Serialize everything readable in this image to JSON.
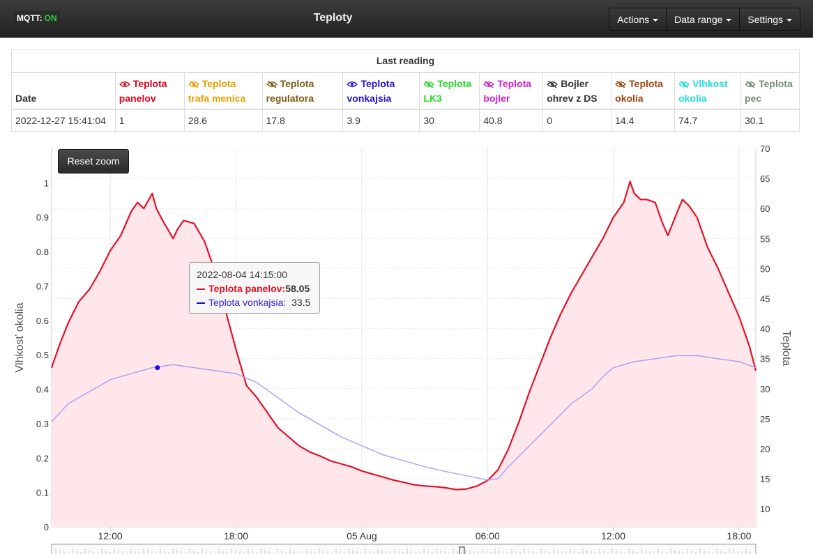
{
  "navbar": {
    "mqtt_label": "MQTT:",
    "mqtt_status": "ON",
    "title": "Teploty",
    "menu": [
      {
        "label": "Actions"
      },
      {
        "label": "Data range"
      },
      {
        "label": "Settings"
      }
    ]
  },
  "reading": {
    "caption": "Last reading",
    "date_header": "Date",
    "columns": [
      {
        "line1": "Teplota",
        "line2": "panelov",
        "color": "#e0001b",
        "visible": true
      },
      {
        "line1": "Teplota",
        "line2": "trafa menica",
        "color": "#e8a000",
        "visible": false
      },
      {
        "line1": "Teplota",
        "line2": "regulatora",
        "color": "#7a5a12",
        "visible": false
      },
      {
        "line1": "Teplota",
        "line2": "vonkajsia",
        "color": "#2211cc",
        "visible": true
      },
      {
        "line1": "Teplota",
        "line2": "LK3",
        "color": "#22dd22",
        "visible": false
      },
      {
        "line1": "Teplota",
        "line2": "bojler",
        "color": "#cc22cc",
        "visible": false
      },
      {
        "line1": "Bojler",
        "line2": "ohrev z DS",
        "color": "#333333",
        "visible": false
      },
      {
        "line1": "Teplota",
        "line2": "okolia",
        "color": "#a0430f",
        "visible": false
      },
      {
        "line1": "Vlhkost",
        "line2": "okolia",
        "color": "#22dddd",
        "visible": false
      },
      {
        "line1": "Teplota",
        "line2": "pec",
        "color": "#6f8f6f",
        "visible": false
      }
    ],
    "date": "2022-12-27 15:41:04",
    "values": [
      "1",
      "28.6",
      "17.8",
      "3.9",
      "30",
      "40.8",
      "0",
      "14.4",
      "74.7",
      "30.1"
    ]
  },
  "chart": {
    "reset_label": "Reset zoom",
    "tooltip": {
      "date": "2022-08-04 14:15:00",
      "series1_name": "Teplota panelov:",
      "series1_value": "58.05",
      "series2_name": "Teplota vonkajsia:",
      "series2_value": "33.5"
    }
  },
  "chart_data": {
    "type": "area",
    "ylabel_left": "Vlhkosť okolia",
    "ylabel_right": "Teplota",
    "yleft_ticks": [
      "0",
      "0.1",
      "0.2",
      "0.3",
      "0.4",
      "0.5",
      "0.6",
      "0.7",
      "0.8",
      "0.9",
      "1"
    ],
    "yright_ticks": [
      "10",
      "15",
      "20",
      "25",
      "30",
      "35",
      "40",
      "45",
      "50",
      "55",
      "60",
      "65",
      "70"
    ],
    "yleft_range": [
      0,
      1.1
    ],
    "yright_range": [
      7,
      70
    ],
    "x_ticks": [
      "12:00",
      "18:00",
      "05 Aug",
      "06:00",
      "12:00",
      "18:00"
    ],
    "x_tick_hours": [
      12,
      18,
      24,
      30,
      36,
      42
    ],
    "x_range_hours": [
      9.2,
      42.8
    ],
    "x_hour_unit": "hours from 2022-08-04 00:00",
    "series": [
      {
        "name": "Teplota panelov",
        "color": "#e0122a",
        "fill": "#ffe6ea",
        "axis": "right",
        "x": [
          9.2,
          9.6,
          10.0,
          10.5,
          11.0,
          11.5,
          12.0,
          12.5,
          13.0,
          13.3,
          13.6,
          14.0,
          14.2,
          14.5,
          15.0,
          15.2,
          15.5,
          16.0,
          16.5,
          17.0,
          17.5,
          18.0,
          18.5,
          19.0,
          19.5,
          20.0,
          20.5,
          21.0,
          21.5,
          22.0,
          22.5,
          23.0,
          23.5,
          24.0,
          24.5,
          25.0,
          25.5,
          26.0,
          26.5,
          27.0,
          27.5,
          28.0,
          28.5,
          29.0,
          29.5,
          30.0,
          30.5,
          31.0,
          31.5,
          32.0,
          32.5,
          33.0,
          33.5,
          34.0,
          34.5,
          35.0,
          35.5,
          36.0,
          36.5,
          36.8,
          37.0,
          37.3,
          37.6,
          38.0,
          38.3,
          38.6,
          39.0,
          39.3,
          39.6,
          40.0,
          40.5,
          41.0,
          41.5,
          42.0,
          42.5,
          42.8
        ],
        "y": [
          33.5,
          37.5,
          41.0,
          44.5,
          46.5,
          49.5,
          53.0,
          55.5,
          59.5,
          61.0,
          60.0,
          62.5,
          60.0,
          58.0,
          55.0,
          56.5,
          58.0,
          57.5,
          54.5,
          49.5,
          43.0,
          36.5,
          30.5,
          28.5,
          26.0,
          23.5,
          22.0,
          20.5,
          19.5,
          18.8,
          18.0,
          17.5,
          17.0,
          16.3,
          15.8,
          15.3,
          14.8,
          14.4,
          14.0,
          13.8,
          13.7,
          13.5,
          13.2,
          13.3,
          13.8,
          14.7,
          16.5,
          20.0,
          24.5,
          29.5,
          34.0,
          38.5,
          42.5,
          46.0,
          49.0,
          52.0,
          55.0,
          58.5,
          61.0,
          64.5,
          62.5,
          61.5,
          61.5,
          61.0,
          58.0,
          55.5,
          59.0,
          61.5,
          60.5,
          58.5,
          53.5,
          50.0,
          46.0,
          42.0,
          37.0,
          33.0
        ]
      },
      {
        "name": "Teplota vonkajsia",
        "color": "#aaa3f0",
        "axis": "right",
        "x": [
          9.2,
          10.0,
          11.0,
          12.0,
          13.0,
          14.0,
          15.0,
          16.0,
          17.0,
          18.0,
          19.0,
          20.0,
          21.0,
          22.0,
          23.0,
          24.0,
          25.0,
          26.0,
          27.0,
          28.0,
          29.0,
          30.0,
          30.5,
          31.0,
          32.0,
          33.0,
          34.0,
          35.0,
          35.5,
          36.0,
          37.0,
          38.0,
          39.0,
          40.0,
          41.0,
          42.0,
          42.8
        ],
        "y": [
          24.5,
          27.5,
          29.5,
          31.5,
          32.5,
          33.5,
          34.0,
          33.5,
          33.0,
          32.5,
          31.0,
          28.5,
          26.0,
          24.0,
          22.0,
          20.5,
          19.0,
          18.0,
          17.0,
          16.2,
          15.5,
          14.8,
          15.0,
          17.0,
          20.5,
          24.0,
          27.5,
          30.0,
          32.0,
          33.5,
          34.5,
          35.0,
          35.5,
          35.5,
          35.0,
          34.5,
          33.5
        ]
      }
    ],
    "marker": {
      "x": 14.25,
      "y": 33.5
    }
  }
}
